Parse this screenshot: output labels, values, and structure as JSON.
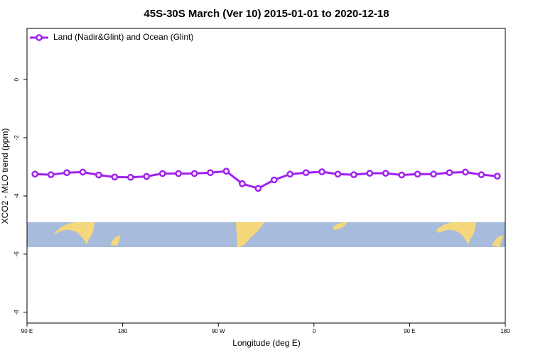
{
  "chart_data": {
    "type": "line",
    "title": "45S-30S March (Ver 10)   2015-01-01 to 2020-12-18",
    "x_label": "Longitude (deg E)",
    "y_label": "XCO2 - MLO trend (ppm)",
    "xlim": [
      90,
      540
    ],
    "xticks": [
      {
        "value": 90,
        "label": "90 E"
      },
      180,
      {
        "value": 270,
        "label": "90 W"
      },
      {
        "value": 360,
        "label": "0"
      },
      {
        "value": 450,
        "label": "90 E"
      },
      {
        "value": 540,
        "label": "180"
      }
    ],
    "ylim": [
      -8.37,
      1.76
    ],
    "yticks": [
      0,
      -2,
      -4,
      -6,
      -8
    ],
    "legend": "top-left",
    "series": [
      {
        "name": "Land (Nadir&Glint) and Ocean (Glint)",
        "color": "#a020f0",
        "x": [
          97.5,
          112.5,
          127.5,
          142.5,
          157.5,
          172.5,
          187.5,
          202.5,
          217.5,
          232.5,
          247.5,
          262.5,
          277.5,
          292.5,
          307.5,
          322.5,
          337.5,
          352.5,
          367.5,
          382.5,
          397.5,
          412.5,
          427.5,
          442.5,
          457.5,
          472.5,
          487.5,
          502.5,
          517.5,
          532.5
        ],
        "values": [
          -3.25,
          -3.27,
          -3.2,
          -3.18,
          -3.28,
          -3.35,
          -3.36,
          -3.33,
          -3.23,
          -3.23,
          -3.23,
          -3.2,
          -3.15,
          -3.58,
          -3.74,
          -3.45,
          -3.25,
          -3.2,
          -3.17,
          -3.25,
          -3.27,
          -3.22,
          -3.22,
          -3.28,
          -3.25,
          -3.25,
          -3.2,
          -3.18,
          -3.27,
          -3.32
        ]
      }
    ]
  }
}
